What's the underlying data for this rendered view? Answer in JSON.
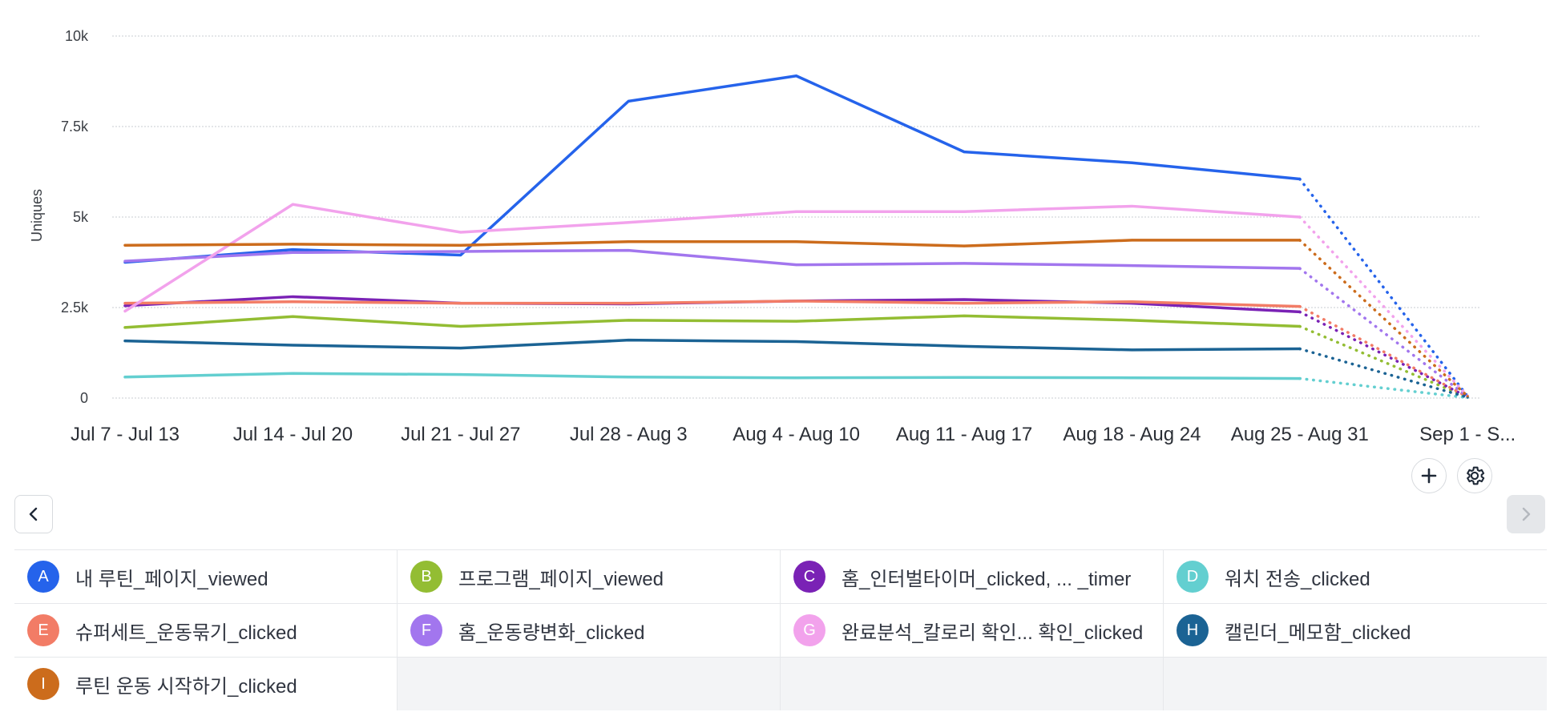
{
  "chart_data": {
    "type": "line",
    "ylabel": "Uniques",
    "xlabel": "",
    "ylim": [
      0,
      10000
    ],
    "y_ticks": [
      "0",
      "2.5k",
      "5k",
      "7.5k",
      "10k"
    ],
    "y_tick_values": [
      0,
      2500,
      5000,
      7500,
      10000
    ],
    "grid": true,
    "categories": [
      "Jul 7 - Jul 13",
      "Jul 14 - Jul 20",
      "Jul 21 - Jul 27",
      "Jul 28 - Aug 3",
      "Aug 4 - Aug 10",
      "Aug 11 - Aug 17",
      "Aug 18 - Aug 24",
      "Aug 25 - Aug 31",
      "Sep 1 - S..."
    ],
    "incomplete_last_period": true,
    "series": [
      {
        "id": "A",
        "name": "내 루틴_페이지_viewed",
        "color": "#2563eb",
        "values": [
          3750,
          4100,
          3950,
          8200,
          8900,
          6800,
          6500,
          6050,
          50
        ]
      },
      {
        "id": "B",
        "name": "프로그램_페이지_viewed",
        "color": "#93bd33",
        "values": [
          1950,
          2250,
          1980,
          2150,
          2120,
          2270,
          2150,
          1980,
          20
        ]
      },
      {
        "id": "C",
        "name": "홈_인터벌타이머_clicked, ...  _timer",
        "color": "#7a22b5",
        "values": [
          2550,
          2800,
          2620,
          2600,
          2680,
          2720,
          2620,
          2380,
          30
        ]
      },
      {
        "id": "D",
        "name": "워치 전송_clicked",
        "color": "#63cfd0",
        "values": [
          580,
          680,
          650,
          580,
          560,
          570,
          560,
          540,
          10
        ]
      },
      {
        "id": "E",
        "name": "슈퍼세트_운동묶기_clicked",
        "color": "#f27c66",
        "values": [
          2620,
          2660,
          2620,
          2620,
          2680,
          2620,
          2660,
          2530,
          30
        ]
      },
      {
        "id": "F",
        "name": "홈_운동량변화_clicked",
        "color": "#a276ee",
        "values": [
          3780,
          4020,
          4050,
          4080,
          3680,
          3720,
          3660,
          3580,
          40
        ]
      },
      {
        "id": "G",
        "name": "완료분석_칼로리 확인...  확인_clicked",
        "color": "#f2a2ec",
        "values": [
          2400,
          5350,
          4580,
          4850,
          5150,
          5150,
          5300,
          5000,
          60
        ]
      },
      {
        "id": "H",
        "name": "캘린더_메모함_clicked",
        "color": "#1b6394",
        "values": [
          1580,
          1460,
          1380,
          1600,
          1560,
          1430,
          1330,
          1360,
          20
        ]
      },
      {
        "id": "I",
        "name": "루틴 운동 시작하기_clicked",
        "color": "#cc6c1c",
        "values": [
          4220,
          4250,
          4220,
          4320,
          4320,
          4200,
          4360,
          4360,
          50
        ]
      }
    ]
  },
  "controls": {
    "add_icon": "plus-icon",
    "settings_icon": "gear-icon",
    "prev_icon": "chevron-left-icon",
    "next_icon": "chevron-right-icon",
    "next_disabled": true
  }
}
